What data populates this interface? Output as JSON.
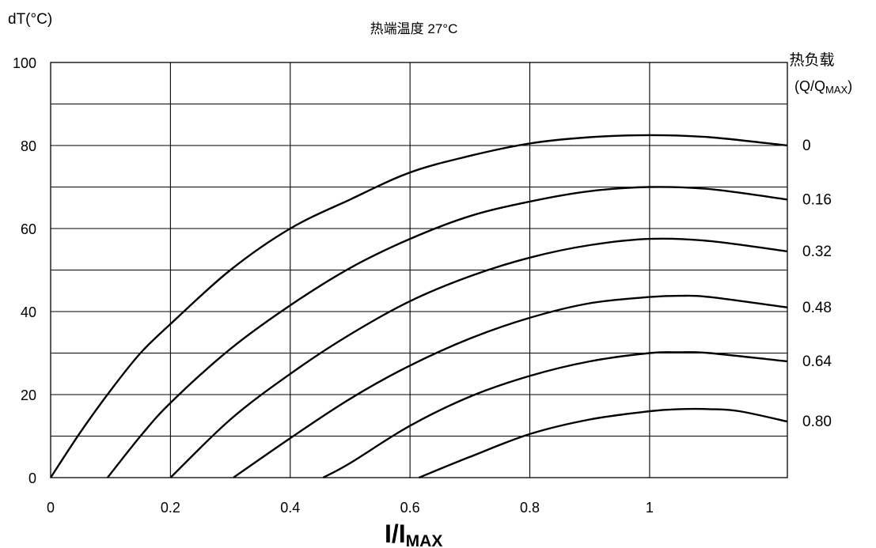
{
  "chart_data": {
    "type": "line",
    "title": "热端温度 27°C",
    "ylabel": "dT(°C)",
    "xlabel_main": "I/I",
    "xlabel_sub": "MAX",
    "legend_title_line1": "热负载",
    "legend_title_line2_main": "(Q/Q",
    "legend_title_line2_sub": "MAX",
    "legend_title_line2_end": ")",
    "xlim": [
      0,
      1.23
    ],
    "ylim": [
      0,
      100
    ],
    "x_ticks": [
      {
        "value": 0,
        "label": "0"
      },
      {
        "value": 0.2,
        "label": "0.2"
      },
      {
        "value": 0.4,
        "label": "0.4"
      },
      {
        "value": 0.6,
        "label": "0.6"
      },
      {
        "value": 0.8,
        "label": "0.8"
      },
      {
        "value": 1.0,
        "label": "1"
      }
    ],
    "y_ticks": [
      {
        "value": 0,
        "label": "0"
      },
      {
        "value": 20,
        "label": "20"
      },
      {
        "value": 40,
        "label": "40"
      },
      {
        "value": 60,
        "label": "60"
      },
      {
        "value": 80,
        "label": "80"
      },
      {
        "value": 100,
        "label": "100"
      }
    ],
    "grid_y": [
      10,
      20,
      30,
      40,
      50,
      60,
      70,
      80,
      90
    ],
    "grid_x": [
      0.2,
      0.4,
      0.6,
      0.8,
      1.0
    ],
    "series": [
      {
        "name": "0",
        "label_value": 80,
        "x": [
          0,
          0.05,
          0.1,
          0.15,
          0.2,
          0.3,
          0.4,
          0.5,
          0.6,
          0.7,
          0.8,
          0.9,
          1.0,
          1.1,
          1.23
        ],
        "y": [
          0,
          11,
          21,
          30,
          37,
          50,
          60,
          67,
          73.5,
          77.5,
          80.5,
          82,
          82.5,
          82,
          80
        ]
      },
      {
        "name": "0.16",
        "label_value": 67,
        "x": [
          0.095,
          0.15,
          0.2,
          0.3,
          0.4,
          0.5,
          0.6,
          0.7,
          0.8,
          0.9,
          1.0,
          1.1,
          1.23
        ],
        "y": [
          0,
          10,
          18,
          31,
          41.5,
          50.5,
          57.5,
          63,
          66.5,
          69,
          70,
          69.5,
          67
        ]
      },
      {
        "name": "0.32",
        "label_value": 54.5,
        "x": [
          0.2,
          0.3,
          0.4,
          0.5,
          0.6,
          0.7,
          0.8,
          0.9,
          1.0,
          1.1,
          1.23
        ],
        "y": [
          0,
          14,
          25,
          34.5,
          42.5,
          48.5,
          53,
          56,
          57.5,
          57,
          54.5
        ]
      },
      {
        "name": "0.48",
        "label_value": 41,
        "x": [
          0.305,
          0.4,
          0.5,
          0.6,
          0.7,
          0.8,
          0.9,
          1.0,
          1.05,
          1.1,
          1.23
        ],
        "y": [
          0,
          9.5,
          19,
          27,
          33.5,
          38.5,
          42,
          43.5,
          43.8,
          43.5,
          41
        ]
      },
      {
        "name": "0.64",
        "label_value": 28,
        "x": [
          0.455,
          0.5,
          0.6,
          0.7,
          0.8,
          0.9,
          1.0,
          1.05,
          1.1,
          1.23
        ],
        "y": [
          0,
          3.5,
          12.5,
          19.5,
          24.5,
          28,
          30,
          30.2,
          30,
          28
        ]
      },
      {
        "name": "0.80",
        "label_value": 13.5,
        "x": [
          0.615,
          0.7,
          0.8,
          0.9,
          1.0,
          1.05,
          1.1,
          1.15,
          1.23
        ],
        "y": [
          0,
          5,
          10.5,
          14,
          16,
          16.5,
          16.5,
          16,
          13.5
        ]
      }
    ]
  }
}
